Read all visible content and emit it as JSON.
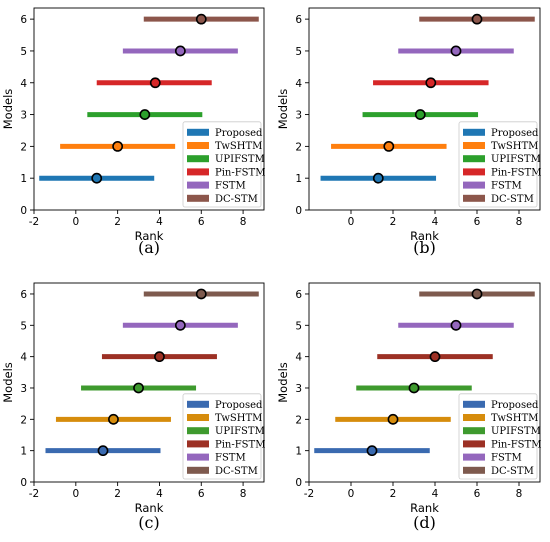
{
  "chart_data": [
    {
      "type": "interval",
      "panel_label": "(a)",
      "xlabel": "Rank",
      "ylabel": "Models",
      "xlim": [
        -2,
        9
      ],
      "ylim": [
        0,
        6.35
      ],
      "xticks": [
        -2,
        0,
        2,
        4,
        6,
        8
      ],
      "yticks": [
        0,
        1,
        2,
        3,
        4,
        5,
        6
      ],
      "legend_position": "lower-right",
      "series": [
        {
          "name": "Proposed",
          "y": 1,
          "rank": 1.0,
          "low": -1.75,
          "high": 3.75,
          "color": "#1f77b4"
        },
        {
          "name": "TwSHTM",
          "y": 2,
          "rank": 2.0,
          "low": -0.75,
          "high": 4.75,
          "color": "#ff7f0e"
        },
        {
          "name": "UPIFSTM",
          "y": 3,
          "rank": 3.3,
          "low": 0.55,
          "high": 6.05,
          "color": "#2ca02c"
        },
        {
          "name": "Pin-FSTM",
          "y": 4,
          "rank": 3.8,
          "low": 1.0,
          "high": 6.5,
          "color": "#d62728"
        },
        {
          "name": "FSTM",
          "y": 5,
          "rank": 5.0,
          "low": 2.25,
          "high": 7.75,
          "color": "#9467bd"
        },
        {
          "name": "DC-STM",
          "y": 6,
          "rank": 6.0,
          "low": 3.25,
          "high": 8.75,
          "color": "#8c564b"
        }
      ]
    },
    {
      "type": "interval",
      "panel_label": "(b)",
      "xlabel": "Rank",
      "ylabel": "Models",
      "xlim": [
        -2,
        9
      ],
      "ylim": [
        0,
        6.35
      ],
      "xticks": [
        0,
        2,
        4,
        6,
        8
      ],
      "yticks": [
        0,
        1,
        2,
        3,
        4,
        5,
        6
      ],
      "legend_position": "lower-right",
      "series": [
        {
          "name": "Proposed",
          "y": 1,
          "rank": 1.3,
          "low": -1.45,
          "high": 4.05,
          "color": "#1f77b4"
        },
        {
          "name": "TwSHTM",
          "y": 2,
          "rank": 1.8,
          "low": -0.95,
          "high": 4.55,
          "color": "#ff7f0e"
        },
        {
          "name": "UPIFSTM",
          "y": 3,
          "rank": 3.3,
          "low": 0.55,
          "high": 6.05,
          "color": "#2ca02c"
        },
        {
          "name": "Pin-FSTM",
          "y": 4,
          "rank": 3.8,
          "low": 1.05,
          "high": 6.55,
          "color": "#d62728"
        },
        {
          "name": "FSTM",
          "y": 5,
          "rank": 5.0,
          "low": 2.25,
          "high": 7.75,
          "color": "#9467bd"
        },
        {
          "name": "DC-STM",
          "y": 6,
          "rank": 6.0,
          "low": 3.25,
          "high": 8.75,
          "color": "#8c564b"
        }
      ]
    },
    {
      "type": "interval",
      "panel_label": "(c)",
      "xlabel": "Rank",
      "ylabel": "Models",
      "xlim": [
        -2,
        9
      ],
      "ylim": [
        0,
        6.35
      ],
      "xticks": [
        -2,
        0,
        2,
        4,
        6,
        8
      ],
      "yticks": [
        0,
        1,
        2,
        3,
        4,
        5,
        6
      ],
      "legend_position": "lower-right",
      "series": [
        {
          "name": "Proposed",
          "y": 1,
          "rank": 1.3,
          "low": -1.45,
          "high": 4.05,
          "color": "#3a6ab0"
        },
        {
          "name": "TwSHTM",
          "y": 2,
          "rank": 1.8,
          "low": -0.95,
          "high": 4.55,
          "color": "#d68c0c"
        },
        {
          "name": "UPIFSTM",
          "y": 3,
          "rank": 3.0,
          "low": 0.25,
          "high": 5.75,
          "color": "#3e9a2e"
        },
        {
          "name": "Pin-FSTM",
          "y": 4,
          "rank": 4.0,
          "low": 1.25,
          "high": 6.75,
          "color": "#9c3024"
        },
        {
          "name": "FSTM",
          "y": 5,
          "rank": 5.0,
          "low": 2.25,
          "high": 7.75,
          "color": "#9467bd"
        },
        {
          "name": "DC-STM",
          "y": 6,
          "rank": 6.0,
          "low": 3.25,
          "high": 8.75,
          "color": "#7e5a4e"
        }
      ]
    },
    {
      "type": "interval",
      "panel_label": "(d)",
      "xlabel": "Rank",
      "ylabel": "Models",
      "xlim": [
        -2,
        9
      ],
      "ylim": [
        0,
        6.35
      ],
      "xticks": [
        -2,
        0,
        2,
        4,
        6,
        8
      ],
      "yticks": [
        0,
        1,
        2,
        3,
        4,
        5,
        6
      ],
      "legend_position": "lower-right",
      "series": [
        {
          "name": "Proposed",
          "y": 1,
          "rank": 1.0,
          "low": -1.75,
          "high": 3.75,
          "color": "#3a6ab0"
        },
        {
          "name": "TwSHTM",
          "y": 2,
          "rank": 2.0,
          "low": -0.75,
          "high": 4.75,
          "color": "#d68c0c"
        },
        {
          "name": "UPIFSTM",
          "y": 3,
          "rank": 3.0,
          "low": 0.25,
          "high": 5.75,
          "color": "#3e9a2e"
        },
        {
          "name": "Pin-FSTM",
          "y": 4,
          "rank": 4.0,
          "low": 1.25,
          "high": 6.75,
          "color": "#9c3024"
        },
        {
          "name": "FSTM",
          "y": 5,
          "rank": 5.0,
          "low": 2.25,
          "high": 7.75,
          "color": "#9467bd"
        },
        {
          "name": "DC-STM",
          "y": 6,
          "rank": 6.0,
          "low": 3.25,
          "high": 8.75,
          "color": "#7e5a4e"
        }
      ]
    }
  ]
}
